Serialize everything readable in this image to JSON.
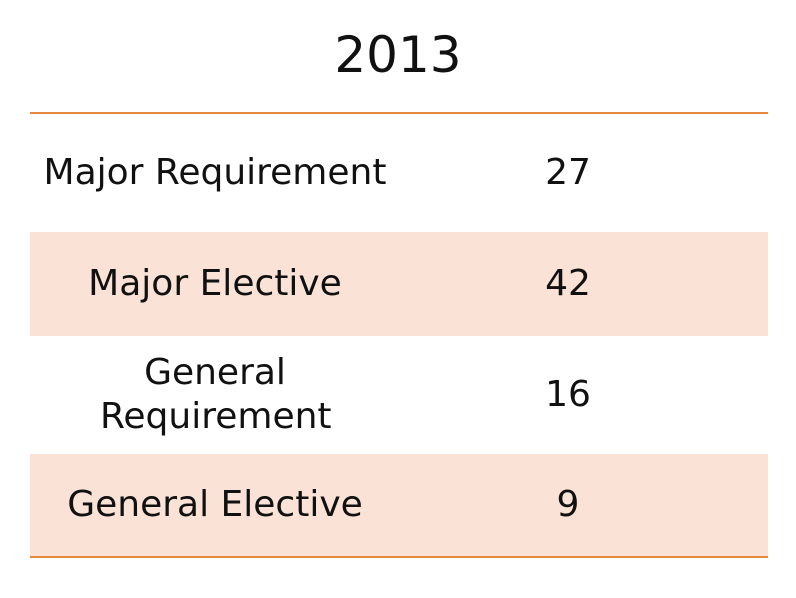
{
  "chart_data": {
    "type": "table",
    "title": "2013",
    "rows": [
      {
        "label": "Major Requirement",
        "value": 27
      },
      {
        "label": "Major Elective",
        "value": 42
      },
      {
        "label": "General Requirement",
        "value": 16
      },
      {
        "label": "General Elective",
        "value": 9
      }
    ]
  },
  "colors": {
    "rule": "#e58a3f",
    "shaded_row": "#fae3d6"
  }
}
